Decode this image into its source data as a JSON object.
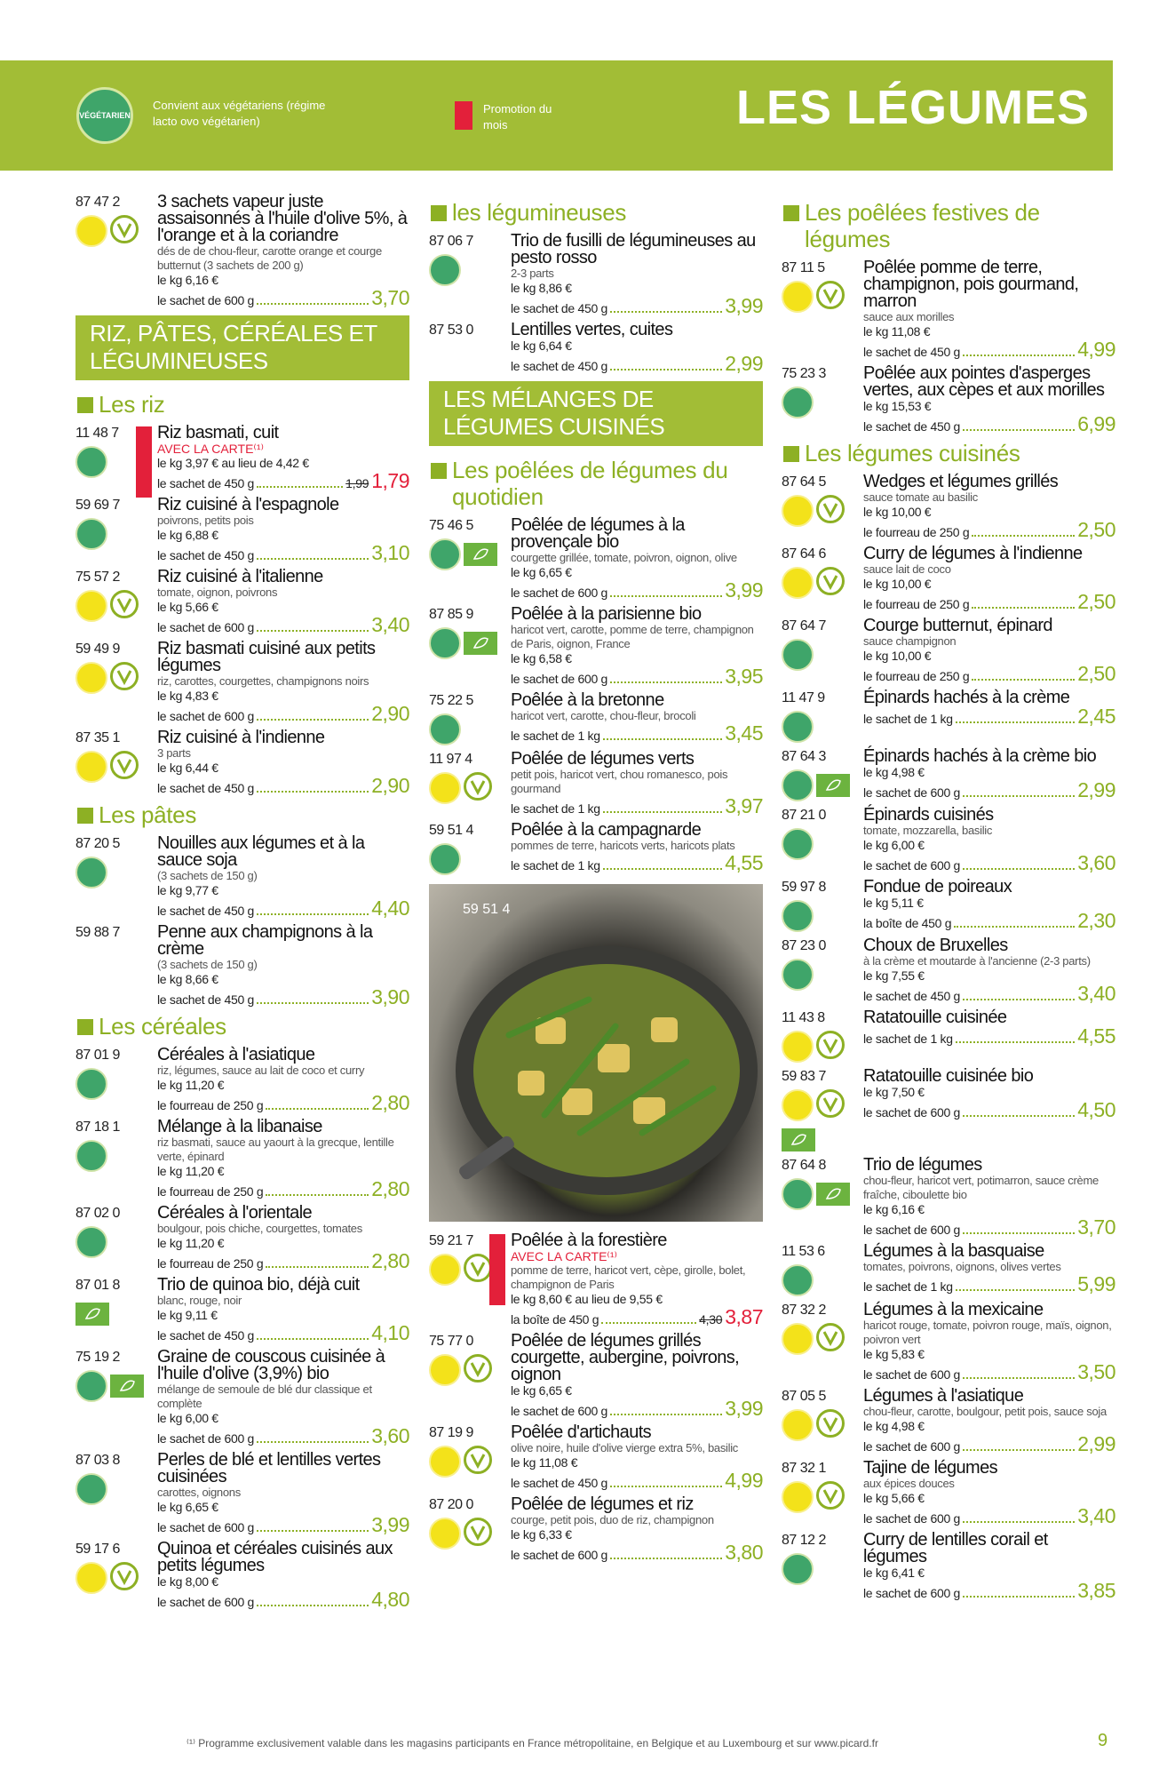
{
  "header": {
    "badge": "VÉGÉTARIEN",
    "legend": "Convient aux végétariens (régime lacto ovo végétarien)",
    "promo_legend": "Promotion du mois",
    "title": "LES LÉGUMES"
  },
  "columns": [
    {
      "blocks": [
        {
          "kind": "product",
          "code": "87 47 2",
          "name": "3 sachets vapeur juste assaisonnés à l'huile d'olive 5%, à l'orange et à la coriandre",
          "desc": "dés de de chou-fleur, carotte orange et courge butternut (3 sachets de 200 g)",
          "unit": "le kg 6,16 €",
          "pack": "le sachet de 600 g",
          "price": "3,70",
          "badge": "vegan"
        },
        {
          "kind": "section",
          "text": "RIZ, PÂTES, CÉRÉALES ET LÉGUMINEUSES"
        },
        {
          "kind": "heading",
          "text": "Les riz"
        },
        {
          "kind": "product",
          "code": "11 48 7",
          "name": "Riz basmati, cuit",
          "promo": "AVEC LA CARTE⁽¹⁾",
          "unit": "le kg 3,97 € au lieu de 4,42 €",
          "pack": "le sachet de 450 g",
          "old_price": "1,99",
          "price": "1,79",
          "badge": "vegetarien"
        },
        {
          "kind": "product",
          "code": "59 69 7",
          "name": "Riz cuisiné à l'espagnole",
          "desc": "poivrons, petits pois",
          "unit": "le kg 6,88 €",
          "pack": "le sachet de 450 g",
          "price": "3,10",
          "badge": "vegetarien"
        },
        {
          "kind": "product",
          "code": "75 57 2",
          "name": "Riz cuisiné à l'italienne",
          "desc": "tomate, oignon, poivrons",
          "unit": "le kg 5,66 €",
          "pack": "le sachet de 600 g",
          "price": "3,40",
          "badge": "vegan"
        },
        {
          "kind": "product",
          "code": "59 49 9",
          "name": "Riz basmati cuisiné aux petits légumes",
          "desc": "riz, carottes, courgettes, champignons noirs",
          "unit": "le kg 4,83 €",
          "pack": "le sachet de 600 g",
          "price": "2,90",
          "badge": "vegan"
        },
        {
          "kind": "product",
          "code": "87 35 1",
          "name": "Riz cuisiné à l'indienne",
          "desc": "3 parts",
          "unit": "le kg 6,44 €",
          "pack": "le sachet de 450 g",
          "price": "2,90",
          "badge": "vegan"
        },
        {
          "kind": "heading",
          "text": "Les pâtes"
        },
        {
          "kind": "product",
          "code": "87 20 5",
          "name": "Nouilles aux légumes et à la sauce soja",
          "desc": "(3 sachets de 150 g)",
          "unit": "le kg 9,77 €",
          "pack": "le sachet de 450 g",
          "price": "4,40",
          "badge": "vegetarien"
        },
        {
          "kind": "product",
          "code": "59 88 7",
          "name": "Penne aux champignons à la crème",
          "desc": "(3 sachets de 150 g)",
          "unit": "le kg 8,66 €",
          "pack": "le sachet de 450 g",
          "price": "3,90"
        },
        {
          "kind": "heading",
          "text": "Les céréales"
        },
        {
          "kind": "product",
          "code": "87 01 9",
          "name": "Céréales à l'asiatique",
          "desc": "riz, légumes, sauce au lait de coco et curry",
          "unit": "le kg 11,20 €",
          "pack": "le fourreau de 250 g",
          "price": "2,80",
          "badge": "vegetarien"
        },
        {
          "kind": "product",
          "code": "87 18 1",
          "name": "Mélange à la libanaise",
          "desc": "riz basmati, sauce au yaourt à la grecque, lentille verte, épinard",
          "unit": "le kg 11,20 €",
          "pack": "le fourreau de 250 g",
          "price": "2,80",
          "badge": "vegetarien"
        },
        {
          "kind": "product",
          "code": "87 02 0",
          "name": "Céréales à l'orientale",
          "desc": "boulgour, pois chiche, courgettes, tomates",
          "unit": "le kg 11,20 €",
          "pack": "le fourreau de 250 g",
          "price": "2,80",
          "badge": "vegetarien"
        },
        {
          "kind": "product",
          "code": "87 01 8",
          "name": "Trio de quinoa bio, déjà cuit",
          "desc": "blanc, rouge, noir",
          "unit": "le kg 9,11 €",
          "pack": "le sachet de 450 g",
          "price": "4,10",
          "bio": true
        },
        {
          "kind": "product",
          "code": "75 19 2",
          "name": "Graine de couscous cuisinée à l'huile d'olive (3,9%) bio",
          "desc": "mélange de semoule de blé dur classique et complète",
          "unit": "le kg 6,00 €",
          "pack": "le sachet de 600 g",
          "price": "3,60",
          "badge": "vegetarien",
          "bio": true
        },
        {
          "kind": "product",
          "code": "87 03 8",
          "name": "Perles de blé et lentilles vertes cuisinées",
          "desc": "carottes, oignons",
          "unit": "le kg 6,65 €",
          "pack": "le sachet de 600 g",
          "price": "3,99",
          "badge": "vegetarien"
        },
        {
          "kind": "product",
          "code": "59 17 6",
          "name": "Quinoa et céréales cuisinés aux petits légumes",
          "unit": "le kg 8,00 €",
          "pack": "le sachet de 600 g",
          "price": "4,80",
          "badge": "vegan"
        }
      ]
    },
    {
      "blocks": [
        {
          "kind": "heading",
          "text": "les légumineuses"
        },
        {
          "kind": "product",
          "code": "87 06 7",
          "name": "Trio de fusilli de légumineuses au pesto rosso",
          "desc": "2-3 parts",
          "unit": "le kg 8,86 €",
          "pack": "le sachet de 450 g",
          "price": "3,99",
          "badge": "vegetarien"
        },
        {
          "kind": "product",
          "code": "87 53 0",
          "name": "Lentilles vertes, cuites",
          "unit": "le kg 6,64 €",
          "pack": "le sachet de 450 g",
          "price": "2,99"
        },
        {
          "kind": "section",
          "text": "LES MÉLANGES DE LÉGUMES CUISINÉS"
        },
        {
          "kind": "heading",
          "text": "Les poêlées de légumes du quotidien"
        },
        {
          "kind": "product",
          "code": "75 46 5",
          "name": "Poêlée de légumes à la provençale bio",
          "desc": "courgette grillée, tomate, poivron, oignon, olive",
          "unit": "le kg 6,65 €",
          "pack": "le sachet de 600 g",
          "price": "3,99",
          "badge": "vegetarien",
          "bio": true
        },
        {
          "kind": "product",
          "code": "87 85 9",
          "name": "Poêlée à la parisienne bio",
          "desc": "haricot vert, carotte, pomme de terre, champignon de Paris, oignon, France",
          "unit": "le kg 6,58 €",
          "pack": "le sachet de 600 g",
          "price": "3,95",
          "badge": "vegetarien",
          "bio": true
        },
        {
          "kind": "product",
          "code": "75 22 5",
          "name": "Poêlée à la bretonne",
          "desc": "haricot vert, carotte, chou-fleur, brocoli",
          "pack": "le sachet de 1 kg",
          "price": "3,45",
          "badge": "vegetarien"
        },
        {
          "kind": "product",
          "code": "11 97 4",
          "name": "Poêlée de légumes verts",
          "desc": "petit pois, haricot vert, chou romanesco, pois gourmand",
          "pack": "le sachet de 1 kg",
          "price": "3,97",
          "badge": "vegan"
        },
        {
          "kind": "product",
          "code": "59 51 4",
          "name": "Poêlée à la campagnarde",
          "desc": "pommes de terre, haricots verts, haricots plats",
          "pack": "le sachet de 1 kg",
          "price": "4,55",
          "badge": "vegetarien"
        },
        {
          "kind": "image",
          "label": "59 51 4"
        },
        {
          "kind": "product",
          "code": "59 21 7",
          "name": "Poêlée à la forestière",
          "desc": "pomme de terre, haricot vert, cèpe, girolle, bolet, champignon de Paris",
          "promo": "AVEC LA CARTE⁽¹⁾",
          "unit": "le kg 8,60 € au lieu de 9,55 €",
          "pack": "la boîte de 450 g",
          "old_price": "4,30",
          "price": "3,87",
          "badge": "vegan"
        },
        {
          "kind": "product",
          "code": "75 77 0",
          "name": "Poêlée de légumes grillés courgette, aubergine, poivrons, oignon",
          "unit": "le kg 6,65 €",
          "pack": "le sachet de 600 g",
          "price": "3,99",
          "badge": "vegan"
        },
        {
          "kind": "product",
          "code": "87 19 9",
          "name": "Poêlée d'artichauts",
          "desc": "olive noire, huile d'olive vierge extra 5%, basilic",
          "unit": "le kg 11,08 €",
          "pack": "le sachet de 450 g",
          "price": "4,99",
          "badge": "vegan"
        },
        {
          "kind": "product",
          "code": "87 20 0",
          "name": "Poêlée de légumes et riz",
          "desc": "courge, petit pois, duo de riz, champignon",
          "unit": "le kg 6,33 €",
          "pack": "le sachet de 600 g",
          "price": "3,80",
          "badge": "vegan"
        }
      ]
    },
    {
      "blocks": [
        {
          "kind": "heading",
          "text": "Les poêlées festives de légumes"
        },
        {
          "kind": "product",
          "code": "87 11 5",
          "name": "Poêlée pomme de terre, champignon, pois gourmand, marron",
          "desc": "sauce aux morilles",
          "unit": "le kg 11,08 €",
          "pack": "le sachet de 450 g",
          "price": "4,99",
          "badge": "vegan"
        },
        {
          "kind": "product",
          "code": "75 23 3",
          "name": "Poêlée aux pointes d'asperges vertes, aux cèpes et aux morilles",
          "unit": "le kg 15,53 €",
          "pack": "le sachet de 450 g",
          "price": "6,99",
          "badge": "vegetarien"
        },
        {
          "kind": "heading",
          "text": "Les légumes cuisinés"
        },
        {
          "kind": "product",
          "code": "87 64 5",
          "name": "Wedges et légumes grillés",
          "desc": "sauce tomate au basilic",
          "unit": "le kg 10,00 €",
          "pack": "le fourreau de 250 g",
          "price": "2,50",
          "badge": "vegan"
        },
        {
          "kind": "product",
          "code": "87 64 6",
          "name": "Curry de légumes à l'indienne",
          "desc": "sauce lait de coco",
          "unit": "le kg 10,00 €",
          "pack": "le fourreau de 250 g",
          "price": "2,50",
          "badge": "vegan"
        },
        {
          "kind": "product",
          "code": "87 64 7",
          "name": "Courge butternut, épinard",
          "desc": "sauce champignon",
          "unit": "le kg 10,00 €",
          "pack": "le fourreau de 250 g",
          "price": "2,50",
          "badge": "vegetarien"
        },
        {
          "kind": "product",
          "code": "11 47 9",
          "name": "Épinards hachés à la crème",
          "pack": "le sachet de 1 kg",
          "price": "2,45",
          "badge": "vegetarien"
        },
        {
          "kind": "product",
          "code": "87 64 3",
          "name": "Épinards hachés à la crème bio",
          "unit": "le kg 4,98 €",
          "pack": "le sachet de 600 g",
          "price": "2,99",
          "badge": "vegetarien",
          "bio": true
        },
        {
          "kind": "product",
          "code": "87 21 0",
          "name": "Épinards cuisinés",
          "desc": "tomate, mozzarella, basilic",
          "unit": "le kg 6,00 €",
          "pack": "le sachet de 600 g",
          "price": "3,60",
          "badge": "vegetarien"
        },
        {
          "kind": "product",
          "code": "59 97 8",
          "name": "Fondue de poireaux",
          "unit": "le kg 5,11 €",
          "pack": "la boîte de 450 g",
          "price": "2,30",
          "badge": "vegetarien"
        },
        {
          "kind": "product",
          "code": "87 23 0",
          "name": "Choux de Bruxelles",
          "desc": "à la crème et moutarde à l'ancienne (2-3 parts)",
          "unit": "le kg 7,55 €",
          "pack": "le sachet de 450 g",
          "price": "3,40",
          "badge": "vegetarien"
        },
        {
          "kind": "product",
          "code": "11 43 8",
          "name": "Ratatouille cuisinée",
          "pack": "le sachet de 1 kg",
          "price": "4,55",
          "badge": "vegan"
        },
        {
          "kind": "product",
          "code": "59 83 7",
          "name": "Ratatouille cuisinée bio",
          "unit": "le kg 7,50 €",
          "pack": "le sachet de 600 g",
          "price": "4,50",
          "badge": "vegan",
          "bio": true
        },
        {
          "kind": "product",
          "code": "87 64 8",
          "name": "Trio de légumes",
          "desc": "chou-fleur, haricot vert, potimarron, sauce crème fraîche, ciboulette bio",
          "unit": "le kg 6,16 €",
          "pack": "le sachet de 600 g",
          "price": "3,70",
          "badge": "vegetarien",
          "bio": true
        },
        {
          "kind": "product",
          "code": "11 53 6",
          "name": "Légumes à la basquaise",
          "desc": "tomates, poivrons, oignons, olives vertes",
          "pack": "le sachet de 1 kg",
          "price": "5,99",
          "badge": "vegetarien"
        },
        {
          "kind": "product",
          "code": "87 32 2",
          "name": "Légumes à la mexicaine",
          "desc": "haricot rouge, tomate, poivron rouge, maïs, oignon, poivron vert",
          "unit": "le kg 5,83 €",
          "pack": "le sachet de 600 g",
          "price": "3,50",
          "badge": "vegan"
        },
        {
          "kind": "product",
          "code": "87 05 5",
          "name": "Légumes à l'asiatique",
          "desc": "chou-fleur, carotte, boulgour, petit pois, sauce soja",
          "unit": "le kg 4,98 €",
          "pack": "le sachet de 600 g",
          "price": "2,99",
          "badge": "vegan"
        },
        {
          "kind": "product",
          "code": "87 32 1",
          "name": "Tajine de légumes",
          "desc": "aux épices douces",
          "unit": "le kg 5,66 €",
          "pack": "le sachet de 600 g",
          "price": "3,40",
          "badge": "vegan"
        },
        {
          "kind": "product",
          "code": "87 12 2",
          "name": "Curry de lentilles corail et légumes",
          "unit": "le kg 6,41 €",
          "pack": "le sachet de 600 g",
          "price": "3,85",
          "badge": "vegetarien"
        }
      ]
    }
  ],
  "footer": {
    "note": "⁽¹⁾ Programme exclusivement valable dans les magasins participants en France métropolitaine, en Belgique et au Luxembourg et sur www.picard.fr",
    "page": "9"
  }
}
